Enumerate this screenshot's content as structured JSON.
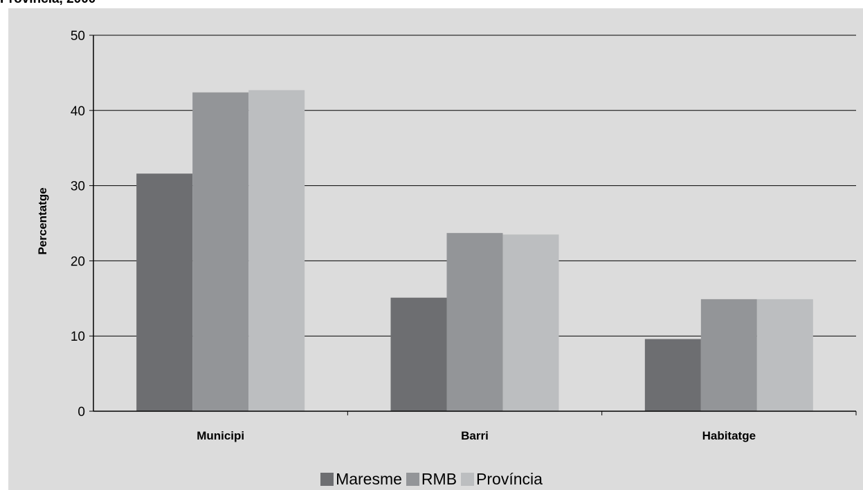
{
  "page": {
    "title": "Província, 2000"
  },
  "chart_data": {
    "type": "bar",
    "title": "",
    "xlabel": "",
    "ylabel": "Percentatge",
    "ylim": [
      0,
      50
    ],
    "yticks": [
      0,
      10,
      20,
      30,
      40,
      50
    ],
    "grid": true,
    "legend_position": "bottom",
    "categories": [
      "Municipi",
      "Barri",
      "Habitatge"
    ],
    "series": [
      {
        "name": "Maresme",
        "color": "#6d6e71",
        "values": [
          31.6,
          15.1,
          9.6
        ]
      },
      {
        "name": "RMB",
        "color": "#939598",
        "values": [
          42.4,
          23.7,
          14.9
        ]
      },
      {
        "name": "Província",
        "color": "#bcbec0",
        "values": [
          42.7,
          23.5,
          14.9
        ]
      }
    ]
  }
}
